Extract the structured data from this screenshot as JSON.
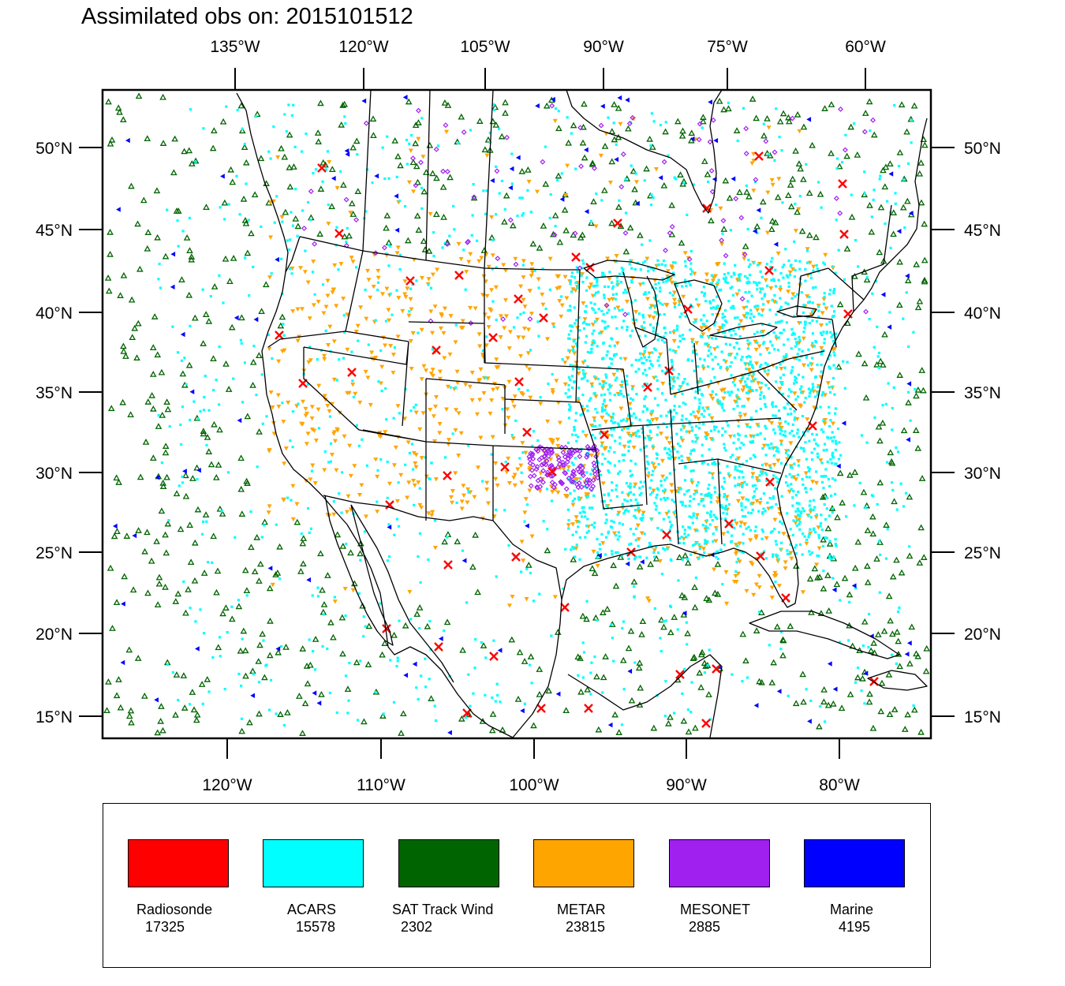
{
  "title": "Assimilated obs on: 2015101512",
  "map": {
    "top_lon_labels": [
      "135°W",
      "120°W",
      "105°W",
      "90°W",
      "75°W",
      "60°W"
    ],
    "bottom_lon_labels": [
      "120°W",
      "110°W",
      "100°W",
      "90°W",
      "80°W"
    ],
    "lat_labels": [
      "50°N",
      "45°N",
      "40°N",
      "35°N",
      "30°N",
      "25°N",
      "20°N",
      "15°N"
    ],
    "projection": "lambert-conformal",
    "background": "#ffffff",
    "state_outlines": true
  },
  "legend": {
    "items": [
      {
        "name": "Radiosonde",
        "count": "17325",
        "color": "#ff0000",
        "marker": "x-icon"
      },
      {
        "name": "ACARS",
        "count": "15578",
        "color": "#00ffff",
        "marker": "dot-icon"
      },
      {
        "name": "SAT Track Wind",
        "count": "2302",
        "color": "#006400",
        "marker": "triangle-up-icon"
      },
      {
        "name": "METAR",
        "count": "23815",
        "color": "#ffa500",
        "marker": "triangle-down-icon"
      },
      {
        "name": "MESONET",
        "count": "2885",
        "color": "#a020f0",
        "marker": "diamond-icon"
      },
      {
        "name": "Marine",
        "count": "4195",
        "color": "#0000ff",
        "marker": "triangle-left-icon"
      }
    ]
  }
}
